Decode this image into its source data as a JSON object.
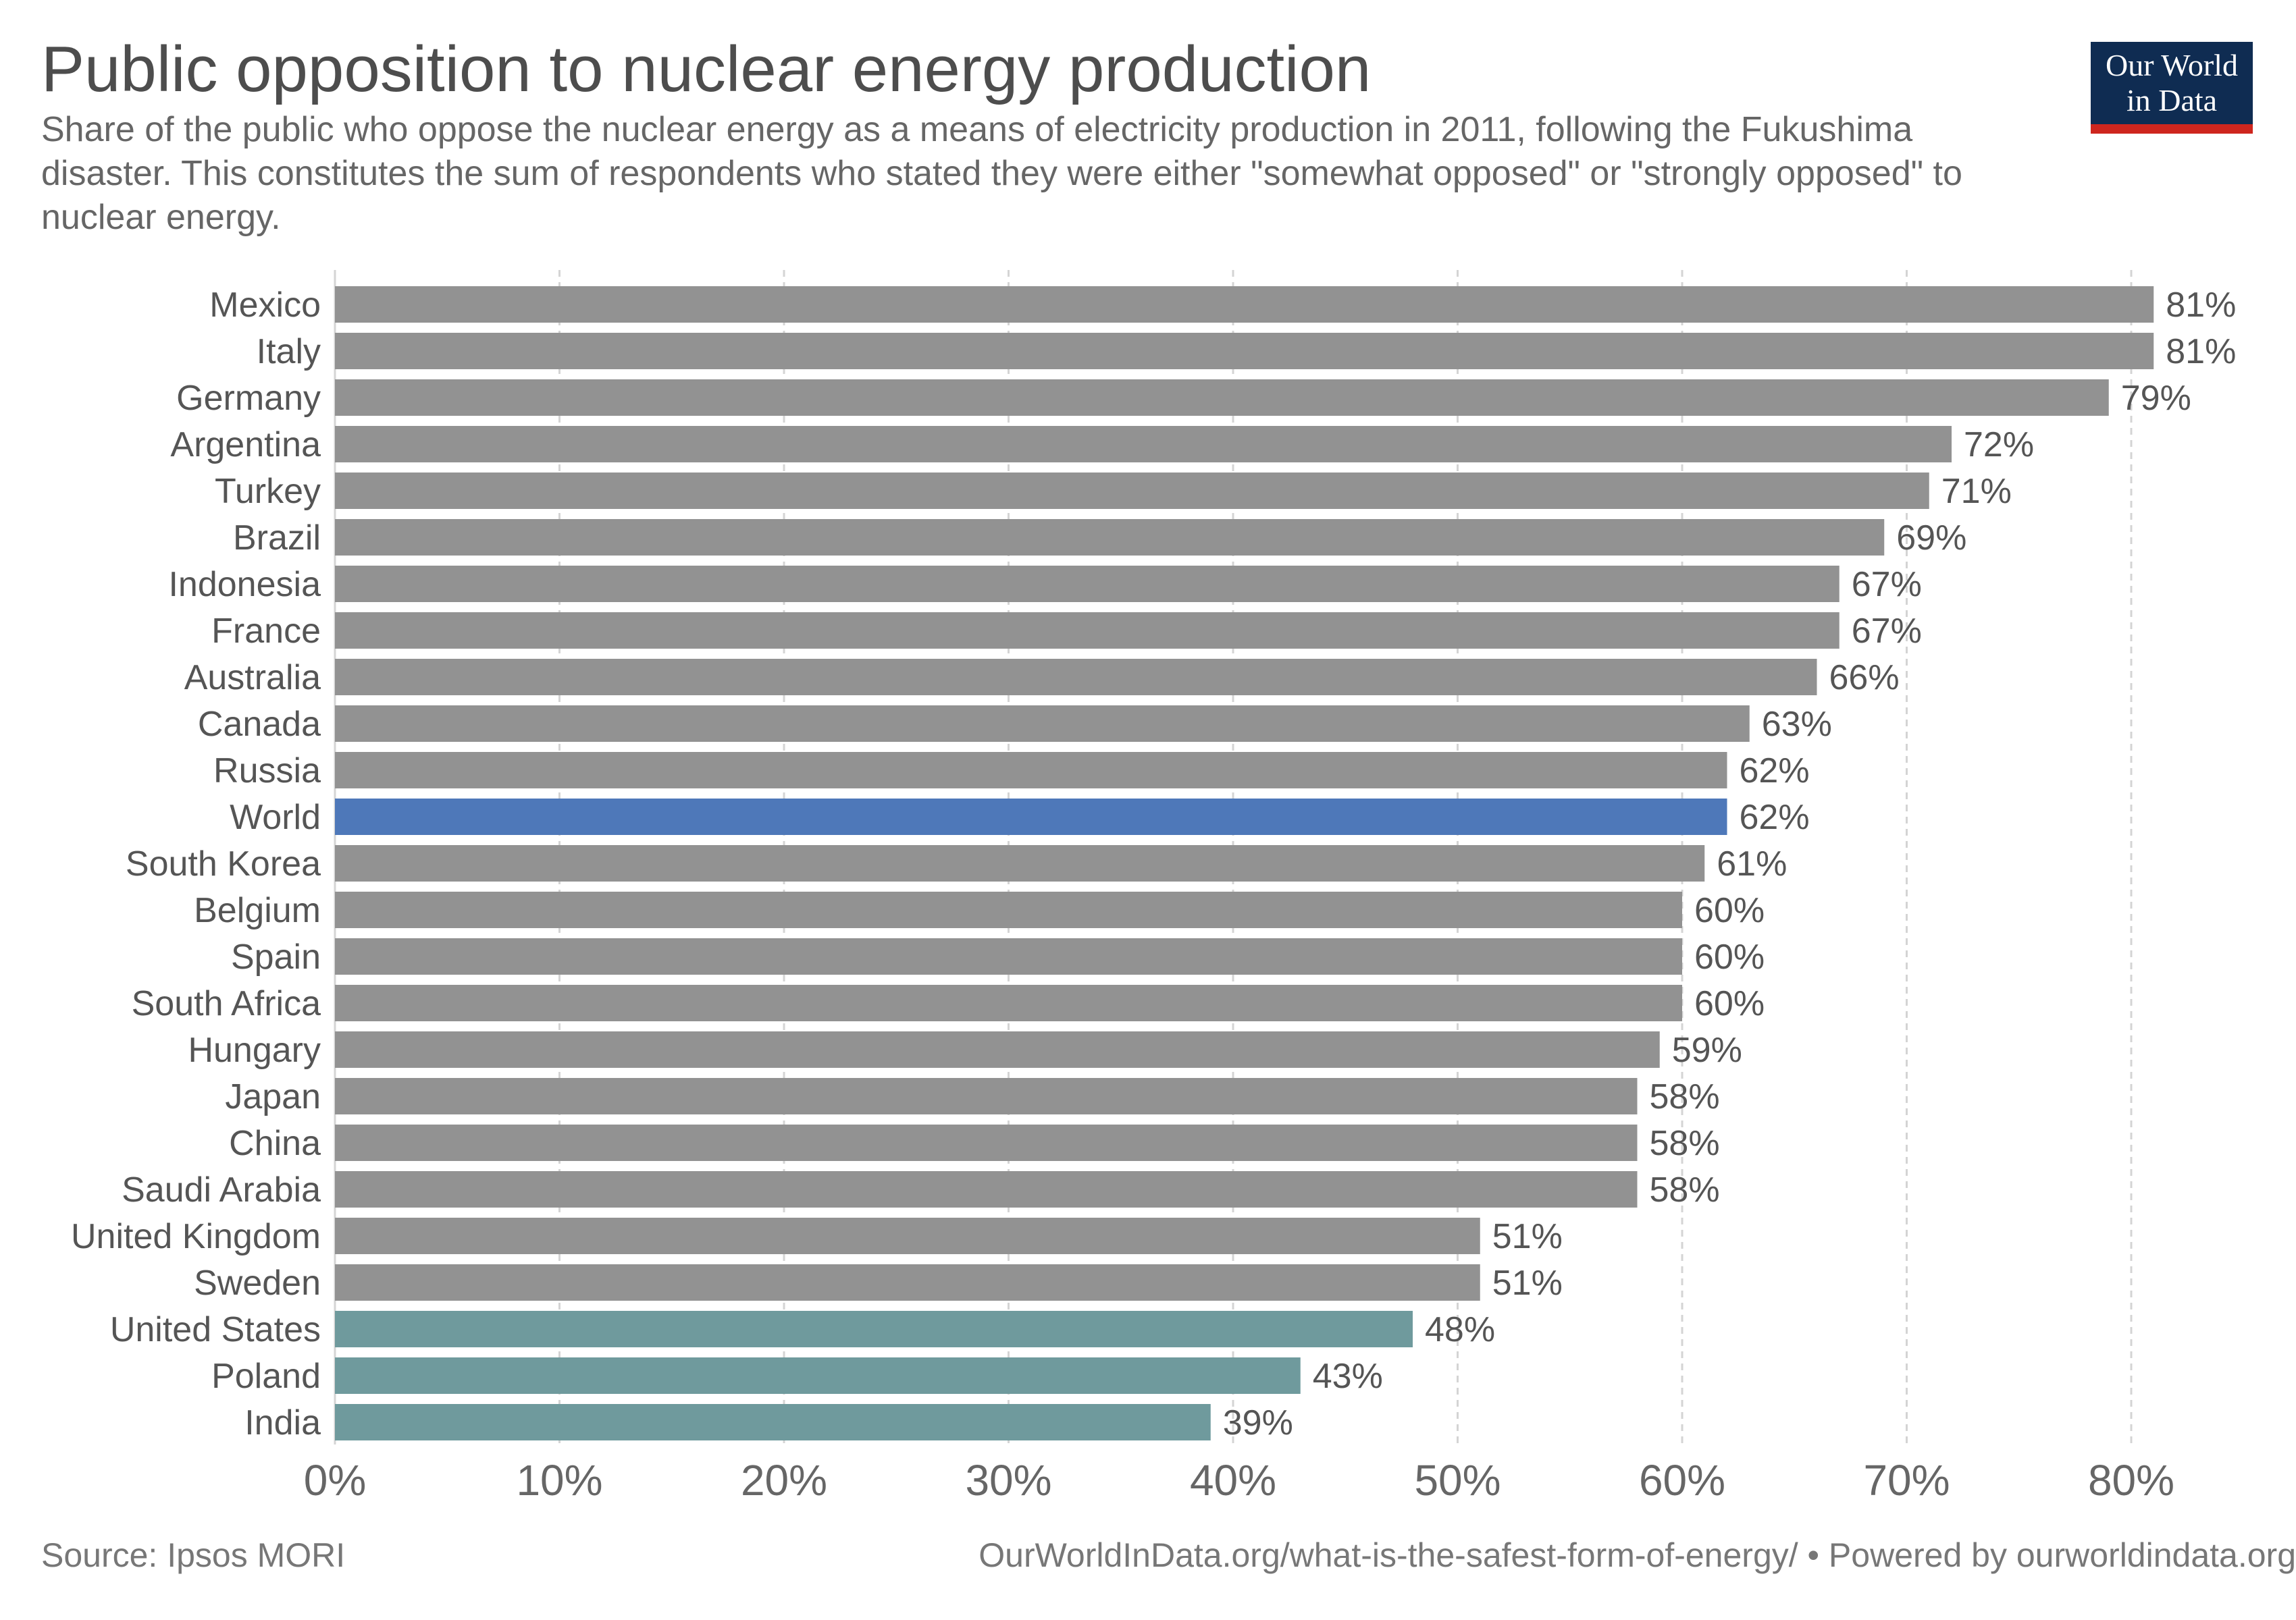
{
  "header": {
    "title": "Public opposition to nuclear energy production",
    "subtitle": "Share of the public who oppose the nuclear energy as a means of electricity production in 2011, following the Fukushima disaster. This constitutes the sum of respondents who stated they were either \"somewhat opposed\" or \"strongly opposed\" to nuclear energy."
  },
  "logo": {
    "line1": "Our World",
    "line2": "in Data",
    "bg_color": "#0f2c52",
    "accent_color": "#ce261e"
  },
  "footer": {
    "source": "Source: Ipsos MORI",
    "url": "OurWorldInData.org/what-is-the-safest-form-of-energy/ • Powered by ourworldindata.org"
  },
  "colors": {
    "default": "#929292",
    "highlight": "#4e78b9",
    "low": "#6f9a9d",
    "grid": "#d4d4d4"
  },
  "chart_data": {
    "type": "bar",
    "orientation": "horizontal",
    "unit": "%",
    "xlim": [
      0,
      80
    ],
    "xticks": [
      0,
      10,
      20,
      30,
      40,
      50,
      60,
      70,
      80
    ],
    "xtick_labels": [
      "0%",
      "10%",
      "20%",
      "30%",
      "40%",
      "50%",
      "60%",
      "70%",
      "80%"
    ],
    "grid": "vertical dashed",
    "categories": [
      "Mexico",
      "Italy",
      "Germany",
      "Argentina",
      "Turkey",
      "Brazil",
      "Indonesia",
      "France",
      "Australia",
      "Canada",
      "Russia",
      "World",
      "South Korea",
      "Belgium",
      "Spain",
      "South Africa",
      "Hungary",
      "Japan",
      "China",
      "Saudi Arabia",
      "United Kingdom",
      "Sweden",
      "United States",
      "Poland",
      "India"
    ],
    "values": [
      81,
      81,
      79,
      72,
      71,
      69,
      67,
      67,
      66,
      63,
      62,
      62,
      61,
      60,
      60,
      60,
      59,
      58,
      58,
      58,
      51,
      51,
      48,
      43,
      39
    ],
    "value_labels": [
      "81%",
      "81%",
      "79%",
      "72%",
      "71%",
      "69%",
      "67%",
      "67%",
      "66%",
      "63%",
      "62%",
      "62%",
      "61%",
      "60%",
      "60%",
      "60%",
      "59%",
      "58%",
      "58%",
      "58%",
      "51%",
      "51%",
      "48%",
      "43%",
      "39%"
    ],
    "bar_colors": [
      "default",
      "default",
      "default",
      "default",
      "default",
      "default",
      "default",
      "default",
      "default",
      "default",
      "default",
      "highlight",
      "default",
      "default",
      "default",
      "default",
      "default",
      "default",
      "default",
      "default",
      "default",
      "default",
      "low",
      "low",
      "low"
    ]
  }
}
